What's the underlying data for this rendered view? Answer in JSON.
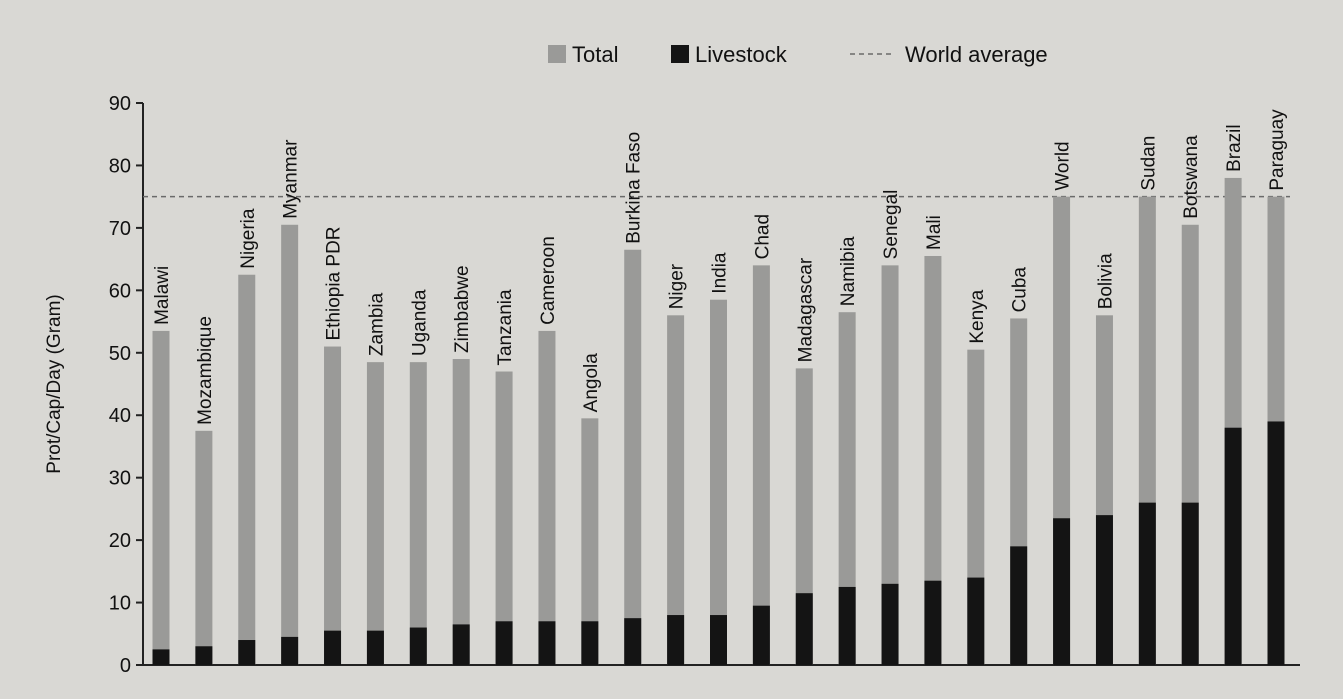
{
  "chart_data": {
    "type": "bar",
    "stacked_overlay": true,
    "ylabel": "Prot/Cap/Day (Gram)",
    "xlabel": "",
    "ylim": [
      0,
      90
    ],
    "yticks": [
      0,
      10,
      20,
      30,
      40,
      50,
      60,
      70,
      80,
      90
    ],
    "reference_line": {
      "label": "World average",
      "value": 75
    },
    "legend": {
      "placement": "top",
      "entries": [
        {
          "label": "Total",
          "color": "#9a9a98"
        },
        {
          "label": "Livestock",
          "color": "#141414"
        },
        {
          "label": "World average",
          "color": "#6a6a6a",
          "style": "dashed"
        }
      ]
    },
    "categories": [
      "Malawi",
      "Mozambique",
      "Nigeria",
      "Myanmar",
      "Ethiopia PDR",
      "Zambia",
      "Uganda",
      "Zimbabwe",
      "Tanzania",
      "Cameroon",
      "Angola",
      "Burkina Faso",
      "Niger",
      "India",
      "Chad",
      "Madagascar",
      "Namibia",
      "Senegal",
      "Mali",
      "Kenya",
      "Cuba",
      "World",
      "Bolivia",
      "Sudan",
      "Botswana",
      "Brazil",
      "Paraguay"
    ],
    "series": [
      {
        "name": "Total",
        "color": "#9a9a98",
        "values": [
          53.5,
          37.5,
          62.5,
          70.5,
          51,
          48.5,
          48.5,
          49,
          47,
          53.5,
          39.5,
          66.5,
          56,
          58.5,
          64,
          47.5,
          56.5,
          64,
          65.5,
          50.5,
          55.5,
          75,
          56,
          75,
          70.5,
          78,
          75
        ]
      },
      {
        "name": "Livestock",
        "color": "#141414",
        "values": [
          2.5,
          3,
          4,
          4.5,
          5.5,
          5.5,
          6,
          6.5,
          7,
          7,
          7,
          7.5,
          8,
          8,
          9.5,
          11.5,
          12.5,
          13,
          13.5,
          14,
          19,
          23.5,
          24,
          26,
          26,
          38,
          39
        ]
      }
    ],
    "grid": false
  }
}
